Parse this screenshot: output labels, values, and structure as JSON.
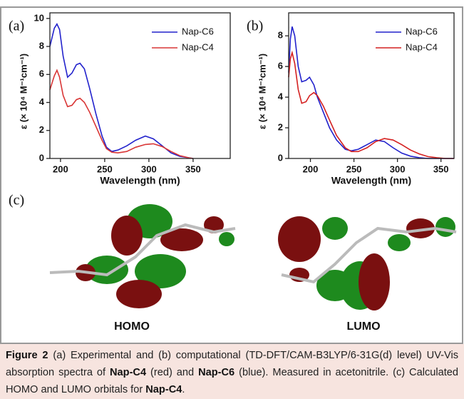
{
  "panel_labels": [
    "(a)",
    "(b)",
    "(c)"
  ],
  "chart_data": [
    {
      "type": "line",
      "x_label": "Wavelength (nm)",
      "y_label": "ε (× 10⁴ M⁻¹cm⁻¹)",
      "xlim": [
        188,
        392
      ],
      "xticks": [
        200,
        250,
        300,
        350
      ],
      "ylim": [
        0,
        10.4
      ],
      "yticks": [
        0,
        2,
        4,
        6,
        8,
        10
      ],
      "legend": "upper-right",
      "x": [
        188,
        193,
        196,
        199,
        203,
        208,
        213,
        218,
        222,
        227,
        233,
        240,
        247,
        252,
        258,
        265,
        275,
        285,
        296,
        305,
        315,
        325,
        335,
        345,
        350
      ],
      "series": [
        {
          "name": "Nap-C6",
          "color": "#2222cc",
          "values": [
            8.0,
            9.3,
            9.6,
            9.2,
            7.3,
            5.8,
            6.1,
            6.7,
            6.8,
            6.4,
            5.0,
            3.2,
            1.6,
            0.8,
            0.5,
            0.6,
            0.9,
            1.3,
            1.6,
            1.4,
            0.9,
            0.4,
            0.15,
            0.05,
            0
          ]
        },
        {
          "name": "Nap-C4",
          "color": "#d93636",
          "values": [
            4.9,
            5.9,
            6.3,
            5.8,
            4.5,
            3.7,
            3.8,
            4.2,
            4.3,
            4.0,
            3.3,
            2.3,
            1.3,
            0.7,
            0.45,
            0.4,
            0.5,
            0.8,
            1.0,
            1.05,
            0.85,
            0.5,
            0.2,
            0.05,
            0
          ]
        }
      ]
    },
    {
      "type": "line",
      "x_label": "Wavelength (nm)",
      "y_label": "ε (× 10⁴ M⁻¹cm⁻¹)",
      "xlim": [
        175,
        365
      ],
      "xticks": [
        200,
        250,
        300,
        350
      ],
      "ylim": [
        0,
        9.5
      ],
      "yticks": [
        0,
        2,
        4,
        6,
        8
      ],
      "legend": "upper-right",
      "x": [
        175,
        177,
        179,
        182,
        186,
        190,
        195,
        199,
        204,
        208,
        215,
        222,
        230,
        240,
        247,
        255,
        265,
        275,
        285,
        295,
        305,
        315,
        325,
        335,
        345,
        355,
        365
      ],
      "series": [
        {
          "name": "Nap-C6",
          "color": "#2222cc",
          "values": [
            5.6,
            7.8,
            8.6,
            8.0,
            6.0,
            5.0,
            5.1,
            5.3,
            4.8,
            4.0,
            3.0,
            2.0,
            1.2,
            0.6,
            0.5,
            0.6,
            0.9,
            1.2,
            1.1,
            0.7,
            0.35,
            0.15,
            0.05,
            0,
            0,
            0,
            0
          ]
        },
        {
          "name": "Nap-C4",
          "color": "#d42020",
          "values": [
            5.3,
            6.5,
            6.9,
            6.2,
            4.5,
            3.6,
            3.7,
            4.1,
            4.3,
            4.1,
            3.4,
            2.5,
            1.5,
            0.7,
            0.45,
            0.45,
            0.7,
            1.1,
            1.3,
            1.2,
            0.9,
            0.55,
            0.3,
            0.12,
            0.05,
            0,
            0
          ]
        }
      ]
    }
  ],
  "orbitals": [
    "HOMO",
    "LUMO"
  ],
  "caption": [
    {
      "text": "Figure 2",
      "bold": true
    },
    {
      "text": " (a) Experimental and (b) computational (TD-DFT/CAM-B3LYP/6-31G(d) level) UV-Vis absorption spectra of ",
      "bold": false
    },
    {
      "text": "Nap-C4",
      "bold": true
    },
    {
      "text": " (red) and ",
      "bold": false
    },
    {
      "text": "Nap-C6",
      "bold": true
    },
    {
      "text": " (blue). Measured in acetonitrile. (c) Calculated HOMO and LUMO orbitals for ",
      "bold": false
    },
    {
      "text": "Nap-C4",
      "bold": true
    },
    {
      "text": ".",
      "bold": false
    }
  ]
}
